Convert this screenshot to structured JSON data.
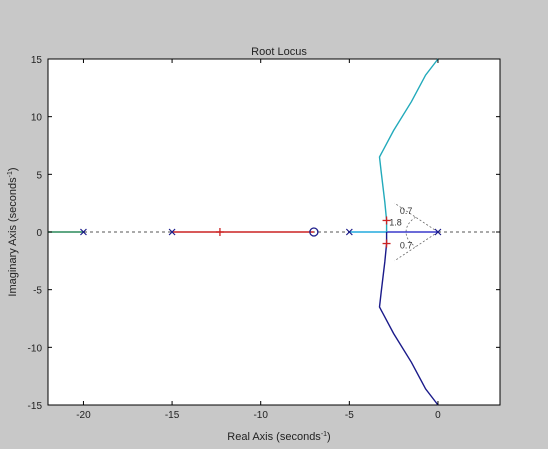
{
  "window": {
    "background": "#c8c8c8",
    "plot_background": "#ffffff"
  },
  "chart_data": {
    "type": "root-locus",
    "title": "Root Locus",
    "xlabel": "Real Axis (seconds",
    "xlabel_sup": "-1",
    "xlabel_close": ")",
    "ylabel": "Imaginary Axis (seconds",
    "ylabel_sup": "-1",
    "ylabel_close": ")",
    "xlim": [
      -22,
      3.5
    ],
    "ylim": [
      -15,
      15
    ],
    "xticks": [
      -20,
      -15,
      -10,
      -5,
      0
    ],
    "xtick_labels": [
      "-20",
      "-15",
      "-10",
      "-5",
      "0"
    ],
    "yticks": [
      15,
      10,
      5,
      0,
      -5,
      -10,
      -15
    ],
    "ytick_labels": [
      "15",
      "10",
      "5",
      "0",
      "-5",
      "-10",
      "-15"
    ],
    "grid": false,
    "poles": [
      {
        "x": 0,
        "y": 0
      },
      {
        "x": -5,
        "y": 0
      },
      {
        "x": -15,
        "y": 0
      },
      {
        "x": -20,
        "y": 0
      }
    ],
    "zeros": [
      {
        "x": -7,
        "y": 0
      }
    ],
    "branches": [
      {
        "color": "#2a8a5a",
        "points": [
          [
            -20,
            0
          ],
          [
            -22,
            0
          ]
        ]
      },
      {
        "color": "#cc2222",
        "points": [
          [
            -15,
            0
          ],
          [
            -7,
            0
          ]
        ]
      },
      {
        "color": "#22aadd",
        "points": [
          [
            -5,
            0
          ],
          [
            -2.9,
            0
          ]
        ]
      },
      {
        "color": "#3a3acc",
        "points": [
          [
            0,
            0
          ],
          [
            -2.9,
            0
          ]
        ]
      },
      {
        "color": "#22aabb",
        "points": [
          [
            -2.9,
            0
          ],
          [
            -2.9,
            1.0
          ],
          [
            -3.0,
            2.6
          ],
          [
            -3.2,
            5.2
          ],
          [
            -3.3,
            6.5
          ],
          [
            -2.5,
            8.8
          ],
          [
            -1.5,
            11.3
          ],
          [
            -0.7,
            13.6
          ],
          [
            0,
            15
          ]
        ]
      },
      {
        "color": "#1a1a8a",
        "points": [
          [
            -2.9,
            0
          ],
          [
            -2.9,
            -1.0
          ],
          [
            -3.0,
            -2.6
          ],
          [
            -3.2,
            -5.2
          ],
          [
            -3.3,
            -6.5
          ],
          [
            -2.5,
            -8.8
          ],
          [
            -1.5,
            -11.3
          ],
          [
            -0.7,
            -13.6
          ],
          [
            0,
            -15
          ]
        ]
      }
    ],
    "marked_points": [
      {
        "x": -2.9,
        "y": 1.0,
        "color": "#cc2222"
      },
      {
        "x": -2.9,
        "y": -1.0,
        "color": "#cc2222"
      },
      {
        "x": -12.3,
        "y": 0,
        "color": "#cc2222"
      }
    ],
    "damping_lines": {
      "zeta": 0.7,
      "length": 3.5
    },
    "wn_arc": {
      "radius": 1.8
    },
    "annotations": [
      {
        "text": "0.7",
        "x": -2.15,
        "y": 1.55
      },
      {
        "text": "0.7",
        "x": -2.15,
        "y": -1.45
      },
      {
        "text": "1.8",
        "x": -2.75,
        "y": 0.55
      }
    ]
  }
}
